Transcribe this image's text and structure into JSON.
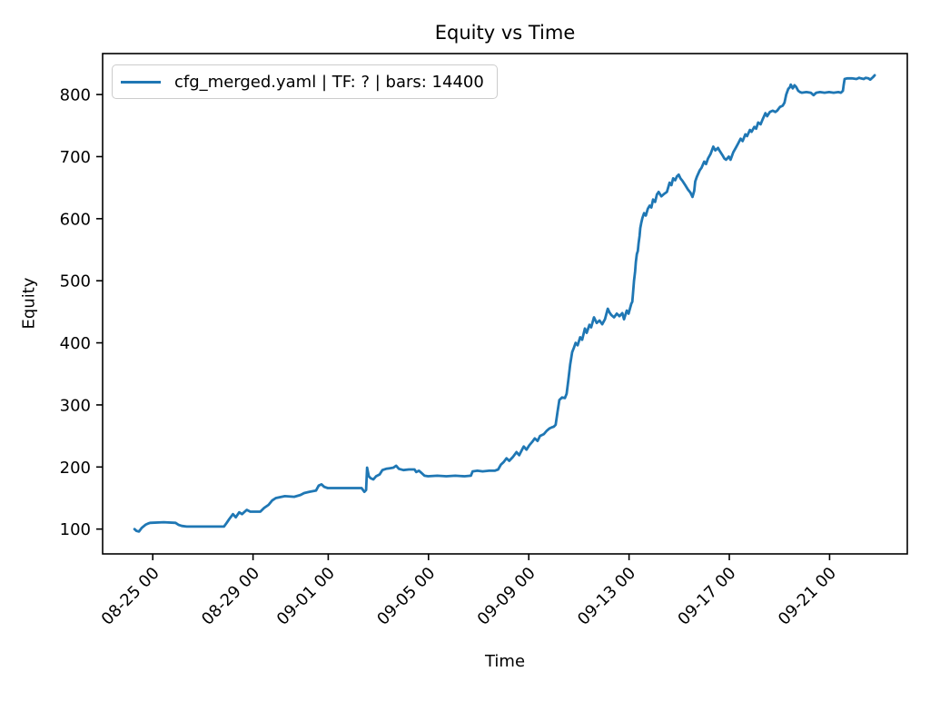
{
  "figure": {
    "title": "Equity vs Time",
    "xlabel": "Time",
    "ylabel": "Equity",
    "legend": {
      "label": "cfg_merged.yaml | TF: ? | bars: 14400"
    }
  },
  "colors": {
    "line": "#1f77b4",
    "spine": "#000000",
    "tick_text": "#000000",
    "legend_border": "#cccccc",
    "background": "#ffffff"
  },
  "chart_data": {
    "type": "line",
    "title": "Equity vs Time",
    "xlabel": "Time",
    "ylabel": "Equity",
    "grid": false,
    "legend_position": "upper left",
    "x_unit": "days since 08-23 00",
    "xlim": [
      0,
      32.1
    ],
    "ylim": [
      60,
      866
    ],
    "y_ticks": [
      100,
      200,
      300,
      400,
      500,
      600,
      700,
      800
    ],
    "x_ticks": [
      {
        "pos": 2,
        "label": "08-25 00"
      },
      {
        "pos": 6,
        "label": "08-29 00"
      },
      {
        "pos": 9,
        "label": "09-01 00"
      },
      {
        "pos": 13,
        "label": "09-05 00"
      },
      {
        "pos": 17,
        "label": "09-09 00"
      },
      {
        "pos": 21,
        "label": "09-13 00"
      },
      {
        "pos": 25,
        "label": "09-17 00"
      },
      {
        "pos": 29,
        "label": "09-21 00"
      }
    ],
    "series": [
      {
        "name": "cfg_merged.yaml | TF: ? | bars: 14400",
        "color": "#1f77b4",
        "points": [
          [
            1.27,
            100
          ],
          [
            1.35,
            97
          ],
          [
            1.45,
            96
          ],
          [
            1.56,
            102
          ],
          [
            1.71,
            107
          ],
          [
            1.82,
            109
          ],
          [
            1.89,
            110
          ],
          [
            2.44,
            111
          ],
          [
            2.91,
            110
          ],
          [
            3.02,
            107
          ],
          [
            3.16,
            105
          ],
          [
            3.35,
            104
          ],
          [
            4.84,
            104
          ],
          [
            4.95,
            110
          ],
          [
            5.05,
            116
          ],
          [
            5.2,
            124
          ],
          [
            5.31,
            119
          ],
          [
            5.45,
            127
          ],
          [
            5.56,
            124
          ],
          [
            5.75,
            131
          ],
          [
            5.89,
            128
          ],
          [
            6.29,
            128
          ],
          [
            6.44,
            134
          ],
          [
            6.62,
            139
          ],
          [
            6.76,
            146
          ],
          [
            6.91,
            150
          ],
          [
            7.27,
            153
          ],
          [
            7.64,
            152
          ],
          [
            7.89,
            155
          ],
          [
            8.04,
            158
          ],
          [
            8.25,
            160
          ],
          [
            8.51,
            162
          ],
          [
            8.62,
            170
          ],
          [
            8.73,
            172
          ],
          [
            8.84,
            168
          ],
          [
            8.98,
            166
          ],
          [
            9.35,
            166
          ],
          [
            10.33,
            166
          ],
          [
            10.44,
            160
          ],
          [
            10.51,
            163
          ],
          [
            10.55,
            199
          ],
          [
            10.62,
            185
          ],
          [
            10.69,
            182
          ],
          [
            10.8,
            180
          ],
          [
            10.91,
            185
          ],
          [
            11.05,
            188
          ],
          [
            11.16,
            195
          ],
          [
            11.31,
            197
          ],
          [
            11.45,
            198
          ],
          [
            11.6,
            199
          ],
          [
            11.71,
            202
          ],
          [
            11.82,
            197
          ],
          [
            12.0,
            195
          ],
          [
            12.22,
            196
          ],
          [
            12.44,
            196
          ],
          [
            12.51,
            192
          ],
          [
            12.62,
            194
          ],
          [
            12.73,
            190
          ],
          [
            12.84,
            186
          ],
          [
            12.98,
            185
          ],
          [
            13.35,
            186
          ],
          [
            13.71,
            185
          ],
          [
            14.07,
            186
          ],
          [
            14.44,
            185
          ],
          [
            14.69,
            186
          ],
          [
            14.76,
            193
          ],
          [
            14.95,
            194
          ],
          [
            15.16,
            193
          ],
          [
            15.42,
            194
          ],
          [
            15.64,
            194
          ],
          [
            15.78,
            196
          ],
          [
            15.89,
            204
          ],
          [
            16.0,
            208
          ],
          [
            16.11,
            214
          ],
          [
            16.22,
            210
          ],
          [
            16.36,
            216
          ],
          [
            16.51,
            224
          ],
          [
            16.62,
            219
          ],
          [
            16.73,
            228
          ],
          [
            16.8,
            233
          ],
          [
            16.91,
            228
          ],
          [
            17.02,
            235
          ],
          [
            17.13,
            240
          ],
          [
            17.24,
            246
          ],
          [
            17.35,
            242
          ],
          [
            17.45,
            250
          ],
          [
            17.6,
            253
          ],
          [
            17.71,
            258
          ],
          [
            17.82,
            262
          ],
          [
            17.93,
            264
          ],
          [
            18.0,
            265
          ],
          [
            18.07,
            268
          ],
          [
            18.15,
            290
          ],
          [
            18.22,
            308
          ],
          [
            18.33,
            312
          ],
          [
            18.44,
            311
          ],
          [
            18.51,
            318
          ],
          [
            18.58,
            340
          ],
          [
            18.65,
            365
          ],
          [
            18.73,
            385
          ],
          [
            18.8,
            392
          ],
          [
            18.87,
            400
          ],
          [
            18.95,
            396
          ],
          [
            19.05,
            409
          ],
          [
            19.13,
            405
          ],
          [
            19.24,
            423
          ],
          [
            19.31,
            416
          ],
          [
            19.42,
            429
          ],
          [
            19.49,
            425
          ],
          [
            19.6,
            441
          ],
          [
            19.71,
            432
          ],
          [
            19.82,
            436
          ],
          [
            19.93,
            430
          ],
          [
            20.04,
            438
          ],
          [
            20.15,
            455
          ],
          [
            20.22,
            449
          ],
          [
            20.29,
            445
          ],
          [
            20.4,
            441
          ],
          [
            20.51,
            447
          ],
          [
            20.62,
            443
          ],
          [
            20.73,
            448
          ],
          [
            20.8,
            438
          ],
          [
            20.91,
            452
          ],
          [
            20.98,
            447
          ],
          [
            21.09,
            463
          ],
          [
            21.13,
            466
          ],
          [
            21.16,
            480
          ],
          [
            21.2,
            500
          ],
          [
            21.24,
            515
          ],
          [
            21.27,
            530
          ],
          [
            21.31,
            543
          ],
          [
            21.35,
            548
          ],
          [
            21.38,
            560
          ],
          [
            21.42,
            572
          ],
          [
            21.45,
            585
          ],
          [
            21.49,
            594
          ],
          [
            21.53,
            601
          ],
          [
            21.6,
            609
          ],
          [
            21.67,
            605
          ],
          [
            21.75,
            616
          ],
          [
            21.82,
            621
          ],
          [
            21.89,
            618
          ],
          [
            21.96,
            631
          ],
          [
            22.04,
            627
          ],
          [
            22.11,
            639
          ],
          [
            22.18,
            643
          ],
          [
            22.29,
            636
          ],
          [
            22.4,
            640
          ],
          [
            22.51,
            643
          ],
          [
            22.62,
            658
          ],
          [
            22.69,
            654
          ],
          [
            22.76,
            665
          ],
          [
            22.84,
            662
          ],
          [
            22.91,
            668
          ],
          [
            22.98,
            671
          ],
          [
            23.05,
            665
          ],
          [
            23.13,
            661
          ],
          [
            23.24,
            654
          ],
          [
            23.35,
            647
          ],
          [
            23.45,
            642
          ],
          [
            23.53,
            635
          ],
          [
            23.6,
            645
          ],
          [
            23.64,
            660
          ],
          [
            23.71,
            668
          ],
          [
            23.82,
            678
          ],
          [
            23.89,
            682
          ],
          [
            24.0,
            692
          ],
          [
            24.07,
            688
          ],
          [
            24.15,
            697
          ],
          [
            24.25,
            704
          ],
          [
            24.36,
            716
          ],
          [
            24.44,
            710
          ],
          [
            24.55,
            714
          ],
          [
            24.62,
            709
          ],
          [
            24.73,
            702
          ],
          [
            24.8,
            697
          ],
          [
            24.87,
            695
          ],
          [
            24.98,
            700
          ],
          [
            25.05,
            695
          ],
          [
            25.16,
            707
          ],
          [
            25.27,
            715
          ],
          [
            25.35,
            721
          ],
          [
            25.45,
            729
          ],
          [
            25.53,
            725
          ],
          [
            25.64,
            736
          ],
          [
            25.71,
            733
          ],
          [
            25.82,
            743
          ],
          [
            25.89,
            740
          ],
          [
            26.0,
            748
          ],
          [
            26.07,
            745
          ],
          [
            26.15,
            755
          ],
          [
            26.25,
            752
          ],
          [
            26.33,
            760
          ],
          [
            26.44,
            770
          ],
          [
            26.51,
            765
          ],
          [
            26.62,
            772
          ],
          [
            26.73,
            774
          ],
          [
            26.84,
            772
          ],
          [
            26.91,
            774
          ],
          [
            27.02,
            780
          ],
          [
            27.13,
            782
          ],
          [
            27.2,
            787
          ],
          [
            27.27,
            800
          ],
          [
            27.35,
            809
          ],
          [
            27.42,
            812
          ],
          [
            27.45,
            816
          ],
          [
            27.53,
            810
          ],
          [
            27.6,
            815
          ],
          [
            27.67,
            812
          ],
          [
            27.75,
            806
          ],
          [
            27.82,
            804
          ],
          [
            27.89,
            803
          ],
          [
            28.07,
            804
          ],
          [
            28.25,
            803
          ],
          [
            28.36,
            799
          ],
          [
            28.47,
            803
          ],
          [
            28.62,
            804
          ],
          [
            28.8,
            803
          ],
          [
            28.98,
            804
          ],
          [
            29.16,
            803
          ],
          [
            29.35,
            804
          ],
          [
            29.45,
            803
          ],
          [
            29.53,
            806
          ],
          [
            29.56,
            815
          ],
          [
            29.6,
            825
          ],
          [
            29.71,
            826
          ],
          [
            29.89,
            826
          ],
          [
            30.07,
            825
          ],
          [
            30.18,
            827
          ],
          [
            30.25,
            826
          ],
          [
            30.36,
            825
          ],
          [
            30.44,
            827
          ],
          [
            30.55,
            826
          ],
          [
            30.62,
            824
          ],
          [
            30.73,
            828
          ],
          [
            30.8,
            831
          ]
        ]
      }
    ]
  }
}
